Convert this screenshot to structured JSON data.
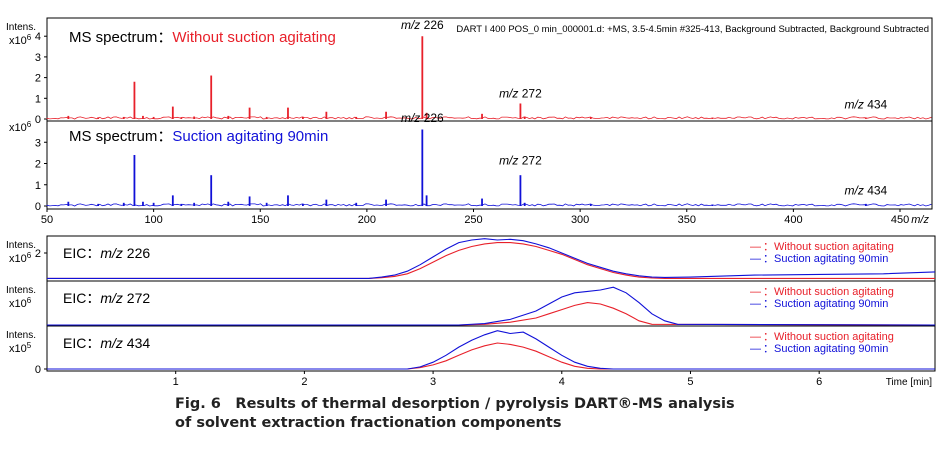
{
  "caption": {
    "line1": "Fig. 6　Results of thermal desorption / pyrolysis DART®-MS analysis",
    "line2": "of solvent extraction fractionation components"
  },
  "colors": {
    "red": "#e8202a",
    "blue": "#1010d8",
    "axis": "#000000"
  },
  "chart_data": [
    {
      "type": "line",
      "panel": "ms-spectrum-without",
      "title": "MS spectrum：",
      "subtitle": "Without suction agitating",
      "header": "DART I 400 POS_0 min_000001.d: +MS, 3.5-4.5min #325-413, Background Subtracted, Background Subtracted",
      "ylabel": "Intens.",
      "yexp": "x10",
      "yexp_power": "6",
      "ylim": [
        0,
        4.3
      ],
      "yticks": [
        "0",
        "1",
        "2",
        "3",
        "4"
      ],
      "xlim": [
        50,
        465
      ],
      "color": "red",
      "peaks": [
        {
          "mz": 60,
          "v": 0.15
        },
        {
          "mz": 74,
          "v": 0.08
        },
        {
          "mz": 86,
          "v": 0.1
        },
        {
          "mz": 91,
          "v": 1.8
        },
        {
          "mz": 95,
          "v": 0.15
        },
        {
          "mz": 100,
          "v": 0.1
        },
        {
          "mz": 109,
          "v": 0.6
        },
        {
          "mz": 113,
          "v": 0.08
        },
        {
          "mz": 119,
          "v": 0.12
        },
        {
          "mz": 127,
          "v": 2.1
        },
        {
          "mz": 135,
          "v": 0.15
        },
        {
          "mz": 145,
          "v": 0.55
        },
        {
          "mz": 153,
          "v": 0.1
        },
        {
          "mz": 163,
          "v": 0.55
        },
        {
          "mz": 170,
          "v": 0.1
        },
        {
          "mz": 181,
          "v": 0.35
        },
        {
          "mz": 195,
          "v": 0.1
        },
        {
          "mz": 209,
          "v": 0.35
        },
        {
          "mz": 226,
          "v": 4.0
        },
        {
          "mz": 228,
          "v": 0.3
        },
        {
          "mz": 254,
          "v": 0.25
        },
        {
          "mz": 272,
          "v": 0.75
        },
        {
          "mz": 274,
          "v": 0.12
        },
        {
          "mz": 305,
          "v": 0.08
        },
        {
          "mz": 362,
          "v": 0.04
        },
        {
          "mz": 434,
          "v": 0.04
        }
      ],
      "annotations": [
        {
          "prefix": "m/z",
          "label": " 226",
          "mz": 226,
          "v": 4.35
        },
        {
          "prefix": "m/z",
          "label": " 272",
          "mz": 272,
          "v": 1.05
        },
        {
          "prefix": "m/z",
          "label": " 434",
          "mz": 434,
          "v": 0.5
        }
      ]
    },
    {
      "type": "line",
      "panel": "ms-spectrum-suction",
      "title": "MS spectrum：",
      "subtitle": "Suction agitating 90min",
      "ylabel": "",
      "yexp": "x10",
      "yexp_power": "6",
      "ylim": [
        0,
        4.0
      ],
      "yticks": [
        "0",
        "1",
        "2",
        "3"
      ],
      "xlim": [
        50,
        465
      ],
      "xticks": [
        "50",
        "100",
        "150",
        "200",
        "250",
        "300",
        "350",
        "400",
        "450"
      ],
      "xtick_values": [
        50,
        100,
        150,
        200,
        250,
        300,
        350,
        400,
        450
      ],
      "xunit": "m/z",
      "color": "blue",
      "peaks": [
        {
          "mz": 60,
          "v": 0.2
        },
        {
          "mz": 74,
          "v": 0.1
        },
        {
          "mz": 86,
          "v": 0.15
        },
        {
          "mz": 91,
          "v": 2.4
        },
        {
          "mz": 95,
          "v": 0.2
        },
        {
          "mz": 100,
          "v": 0.15
        },
        {
          "mz": 109,
          "v": 0.5
        },
        {
          "mz": 113,
          "v": 0.1
        },
        {
          "mz": 119,
          "v": 0.15
        },
        {
          "mz": 127,
          "v": 1.45
        },
        {
          "mz": 135,
          "v": 0.2
        },
        {
          "mz": 145,
          "v": 0.45
        },
        {
          "mz": 153,
          "v": 0.15
        },
        {
          "mz": 163,
          "v": 0.5
        },
        {
          "mz": 170,
          "v": 0.1
        },
        {
          "mz": 181,
          "v": 0.3
        },
        {
          "mz": 195,
          "v": 0.15
        },
        {
          "mz": 209,
          "v": 0.3
        },
        {
          "mz": 226,
          "v": 3.6
        },
        {
          "mz": 228,
          "v": 0.5
        },
        {
          "mz": 254,
          "v": 0.35
        },
        {
          "mz": 272,
          "v": 1.45
        },
        {
          "mz": 274,
          "v": 0.15
        },
        {
          "mz": 305,
          "v": 0.1
        },
        {
          "mz": 362,
          "v": 0.06
        },
        {
          "mz": 434,
          "v": 0.1
        }
      ],
      "annotations": [
        {
          "prefix": "m/z",
          "label": " 226",
          "mz": 226,
          "v": 3.95
        },
        {
          "prefix": "m/z",
          "label": " 272",
          "mz": 272,
          "v": 1.95
        },
        {
          "prefix": "m/z",
          "label": " 434",
          "mz": 434,
          "v": 0.55
        }
      ]
    },
    {
      "type": "line",
      "panel": "eic-226",
      "title": "EIC：",
      "title_italic": "m/z",
      "title_rest": " 226",
      "ylabel": "Intens.",
      "yexp": "x10",
      "yexp_power": "6",
      "ylim": [
        0,
        3.0
      ],
      "yticks": [
        "2"
      ],
      "ytick_values": [
        2
      ],
      "xlim": [
        0,
        6.9
      ],
      "legend": [
        {
          "dash": "—",
          "text": "：Without suction agitating",
          "color": "red"
        },
        {
          "dash": "—",
          "text": "：Suction agitating 90min",
          "color": "blue"
        }
      ],
      "series": [
        {
          "color": "red",
          "x": [
            0,
            2.5,
            2.6,
            2.7,
            2.8,
            2.9,
            3.0,
            3.1,
            3.2,
            3.3,
            3.4,
            3.5,
            3.6,
            3.7,
            3.8,
            3.9,
            4.0,
            4.1,
            4.2,
            4.3,
            4.4,
            4.5,
            4.6,
            4.7,
            4.8,
            6.9
          ],
          "y": [
            0.05,
            0.05,
            0.1,
            0.2,
            0.4,
            0.8,
            1.3,
            1.8,
            2.2,
            2.5,
            2.7,
            2.8,
            2.8,
            2.7,
            2.5,
            2.2,
            1.9,
            1.5,
            1.1,
            0.8,
            0.5,
            0.3,
            0.15,
            0.08,
            0.05,
            0.05
          ]
        },
        {
          "color": "blue",
          "x": [
            0,
            2.5,
            2.6,
            2.7,
            2.8,
            2.9,
            3.0,
            3.1,
            3.2,
            3.3,
            3.4,
            3.5,
            3.6,
            3.7,
            3.8,
            3.9,
            4.0,
            4.1,
            4.2,
            4.3,
            4.4,
            4.5,
            4.6,
            4.7,
            4.8,
            5.0,
            5.5,
            6.0,
            6.5,
            6.9
          ],
          "y": [
            0.05,
            0.05,
            0.15,
            0.3,
            0.6,
            1.1,
            1.7,
            2.3,
            2.8,
            3.0,
            3.1,
            3.0,
            3.05,
            2.95,
            2.7,
            2.4,
            2.0,
            1.6,
            1.2,
            0.9,
            0.6,
            0.4,
            0.25,
            0.15,
            0.12,
            0.15,
            0.3,
            0.35,
            0.4,
            0.55
          ]
        }
      ]
    },
    {
      "type": "line",
      "panel": "eic-272",
      "title": "EIC：",
      "title_italic": "m/z",
      "title_rest": " 272",
      "ylabel": "Intens.",
      "yexp": "x10",
      "yexp_power": "6",
      "ylim": [
        0,
        3.0
      ],
      "yticks": [],
      "xlim": [
        0,
        6.9
      ],
      "legend": [
        {
          "dash": "—",
          "text": "：Without suction agitating",
          "color": "red"
        },
        {
          "dash": "—",
          "text": "：Suction agitating 90min",
          "color": "blue"
        }
      ],
      "series": [
        {
          "color": "red",
          "x": [
            0,
            3.2,
            3.4,
            3.6,
            3.8,
            3.9,
            4.0,
            4.1,
            4.2,
            4.3,
            4.4,
            4.5,
            4.6,
            4.7,
            6.9
          ],
          "y": [
            0,
            0,
            0.05,
            0.2,
            0.5,
            0.8,
            1.1,
            1.4,
            1.6,
            1.5,
            1.2,
            0.8,
            0.3,
            0.05,
            0
          ]
        },
        {
          "color": "blue",
          "x": [
            0,
            3.2,
            3.4,
            3.6,
            3.8,
            3.9,
            4.0,
            4.1,
            4.2,
            4.3,
            4.4,
            4.5,
            4.6,
            4.7,
            4.8,
            4.9,
            6.9
          ],
          "y": [
            0,
            0,
            0.1,
            0.4,
            1.0,
            1.5,
            2.0,
            2.3,
            2.4,
            2.5,
            2.7,
            2.3,
            1.6,
            0.8,
            0.3,
            0.05,
            0
          ]
        }
      ]
    },
    {
      "type": "line",
      "panel": "eic-434",
      "title": "EIC：",
      "title_italic": "m/z",
      "title_rest": " 434",
      "ylabel": "Intens.",
      "yexp": "x10",
      "yexp_power": "5",
      "ylim": [
        0,
        3.0
      ],
      "yticks": [
        "0"
      ],
      "ytick_values": [
        0
      ],
      "xlim": [
        0,
        6.9
      ],
      "xticks": [
        "1",
        "2",
        "3",
        "4",
        "5",
        "6"
      ],
      "xtick_values": [
        1,
        2,
        3,
        4,
        5,
        6
      ],
      "xunit": "Time [min]",
      "legend": [
        {
          "dash": "—",
          "text": "：Without suction agitating",
          "color": "red"
        },
        {
          "dash": "—",
          "text": "：Suction agitating 90min",
          "color": "blue"
        }
      ],
      "series": [
        {
          "color": "red",
          "x": [
            0,
            2.8,
            2.9,
            3.0,
            3.1,
            3.2,
            3.3,
            3.4,
            3.5,
            3.6,
            3.7,
            3.8,
            3.9,
            4.0,
            4.1,
            4.2,
            4.3,
            6.9
          ],
          "y": [
            0,
            0,
            0.1,
            0.3,
            0.6,
            1.0,
            1.4,
            1.7,
            1.9,
            1.8,
            1.6,
            1.3,
            0.9,
            0.5,
            0.2,
            0.05,
            0,
            0
          ]
        },
        {
          "color": "blue",
          "x": [
            0,
            2.8,
            2.9,
            3.0,
            3.1,
            3.2,
            3.3,
            3.4,
            3.5,
            3.6,
            3.7,
            3.8,
            3.9,
            4.0,
            4.1,
            4.2,
            4.3,
            4.4,
            6.9
          ],
          "y": [
            0,
            0,
            0.15,
            0.5,
            1.0,
            1.6,
            2.1,
            2.5,
            2.8,
            2.6,
            2.7,
            2.2,
            1.6,
            1.0,
            0.5,
            0.2,
            0.05,
            0,
            0
          ]
        }
      ]
    }
  ]
}
